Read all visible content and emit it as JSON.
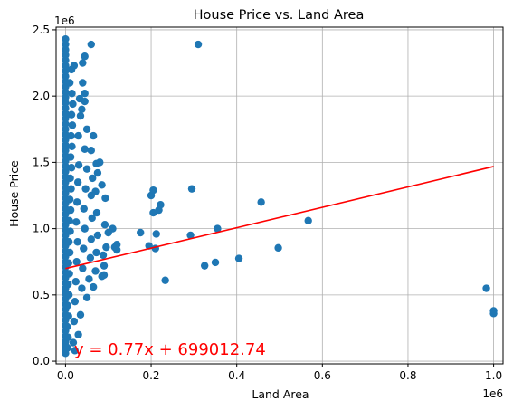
{
  "chart_data": {
    "type": "scatter",
    "title": "House Price vs. Land Area",
    "xlabel": "Land Area",
    "ylabel": "House Price",
    "x_offset_label": "1e6",
    "y_offset_label": "1e6",
    "xlim": [
      -22000,
      1022000
    ],
    "ylim": [
      -20000,
      2520000
    ],
    "xticks": [
      0,
      200000,
      400000,
      600000,
      800000,
      1000000
    ],
    "xtick_labels": [
      "0.0",
      "0.2",
      "0.4",
      "0.6",
      "0.8",
      "1.0"
    ],
    "yticks": [
      0,
      500000,
      1000000,
      1500000,
      2000000,
      2500000
    ],
    "ytick_labels": [
      "0.0",
      "0.5",
      "1.0",
      "1.5",
      "2.0",
      "2.5"
    ],
    "grid": true,
    "point_color": "#1f77b4",
    "line_color": "#ff0000",
    "regression": {
      "slope": 0.77,
      "intercept": 699012.74
    },
    "annotation": "y = 0.77x + 699012.74",
    "points": [
      [
        0,
        60000
      ],
      [
        0,
        90000
      ],
      [
        0,
        120000
      ],
      [
        0,
        150000
      ],
      [
        0,
        190000
      ],
      [
        0,
        230000
      ],
      [
        0,
        270000
      ],
      [
        0,
        310000
      ],
      [
        0,
        350000
      ],
      [
        0,
        390000
      ],
      [
        0,
        430000
      ],
      [
        0,
        470000
      ],
      [
        0,
        510000
      ],
      [
        0,
        550000
      ],
      [
        0,
        590000
      ],
      [
        0,
        630000
      ],
      [
        0,
        670000
      ],
      [
        0,
        710000
      ],
      [
        0,
        750000
      ],
      [
        0,
        790000
      ],
      [
        0,
        830000
      ],
      [
        0,
        870000
      ],
      [
        0,
        910000
      ],
      [
        0,
        950000
      ],
      [
        0,
        990000
      ],
      [
        0,
        1030000
      ],
      [
        0,
        1070000
      ],
      [
        0,
        1110000
      ],
      [
        0,
        1150000
      ],
      [
        0,
        1190000
      ],
      [
        0,
        1230000
      ],
      [
        0,
        1270000
      ],
      [
        0,
        1310000
      ],
      [
        0,
        1350000
      ],
      [
        0,
        1390000
      ],
      [
        0,
        1430000
      ],
      [
        0,
        1470000
      ],
      [
        0,
        1510000
      ],
      [
        0,
        1550000
      ],
      [
        0,
        1590000
      ],
      [
        0,
        1630000
      ],
      [
        0,
        1670000
      ],
      [
        0,
        1710000
      ],
      [
        0,
        1750000
      ],
      [
        0,
        1790000
      ],
      [
        0,
        1830000
      ],
      [
        0,
        1870000
      ],
      [
        0,
        1910000
      ],
      [
        0,
        1950000
      ],
      [
        0,
        1990000
      ],
      [
        0,
        2030000
      ],
      [
        0,
        2070000
      ],
      [
        0,
        2110000
      ],
      [
        0,
        2150000
      ],
      [
        0,
        2190000
      ],
      [
        0,
        2230000
      ],
      [
        0,
        2270000
      ],
      [
        0,
        2310000
      ],
      [
        0,
        2350000
      ],
      [
        0,
        2390000
      ],
      [
        0,
        2430000
      ],
      [
        5000,
        100000
      ],
      [
        6000,
        180000
      ],
      [
        4000,
        260000
      ],
      [
        7000,
        340000
      ],
      [
        5000,
        420000
      ],
      [
        8000,
        500000
      ],
      [
        6000,
        580000
      ],
      [
        9000,
        660000
      ],
      [
        7000,
        740000
      ],
      [
        10000,
        820000
      ],
      [
        8000,
        900000
      ],
      [
        11000,
        980000
      ],
      [
        9000,
        1060000
      ],
      [
        12000,
        1140000
      ],
      [
        10000,
        1220000
      ],
      [
        13000,
        1300000
      ],
      [
        11000,
        1380000
      ],
      [
        14000,
        1460000
      ],
      [
        12000,
        1540000
      ],
      [
        15000,
        1620000
      ],
      [
        13000,
        1700000
      ],
      [
        16000,
        1780000
      ],
      [
        14000,
        1860000
      ],
      [
        17000,
        1940000
      ],
      [
        15000,
        2020000
      ],
      [
        10000,
        2100000
      ],
      [
        14000,
        2200000
      ],
      [
        20000,
        2230000
      ],
      [
        18000,
        140000
      ],
      [
        20000,
        300000
      ],
      [
        22000,
        450000
      ],
      [
        24000,
        600000
      ],
      [
        26000,
        750000
      ],
      [
        28000,
        900000
      ],
      [
        25000,
        1050000
      ],
      [
        27000,
        1200000
      ],
      [
        29000,
        1350000
      ],
      [
        31000,
        1480000
      ],
      [
        30000,
        1700000
      ],
      [
        35000,
        1850000
      ],
      [
        33000,
        1980000
      ],
      [
        22000,
        80000
      ],
      [
        30000,
        200000
      ],
      [
        35000,
        350000
      ],
      [
        38000,
        550000
      ],
      [
        40000,
        700000
      ],
      [
        42000,
        850000
      ],
      [
        45000,
        1000000
      ],
      [
        43000,
        1150000
      ],
      [
        47000,
        1300000
      ],
      [
        50000,
        1450000
      ],
      [
        45000,
        1600000
      ],
      [
        50000,
        1750000
      ],
      [
        38000,
        1900000
      ],
      [
        40000,
        2100000
      ],
      [
        40000,
        2250000
      ],
      [
        45000,
        2300000
      ],
      [
        45000,
        1960000
      ],
      [
        45000,
        2020000
      ],
      [
        50000,
        480000
      ],
      [
        55000,
        620000
      ],
      [
        58000,
        780000
      ],
      [
        60000,
        920000
      ],
      [
        62000,
        1080000
      ],
      [
        60000,
        1250000
      ],
      [
        63000,
        1380000
      ],
      [
        60000,
        1590000
      ],
      [
        65000,
        1700000
      ],
      [
        65000,
        560000
      ],
      [
        70000,
        680000
      ],
      [
        72000,
        820000
      ],
      [
        75000,
        950000
      ],
      [
        73000,
        1120000
      ],
      [
        70000,
        1280000
      ],
      [
        75000,
        1420000
      ],
      [
        72000,
        1490000
      ],
      [
        80000,
        1500000
      ],
      [
        85000,
        640000
      ],
      [
        90000,
        720000
      ],
      [
        88000,
        800000
      ],
      [
        92000,
        1030000
      ],
      [
        95000,
        860000
      ],
      [
        93000,
        1230000
      ],
      [
        100000,
        970000
      ],
      [
        90000,
        650000
      ],
      [
        85000,
        1330000
      ],
      [
        110000,
        1000000
      ],
      [
        115000,
        860000
      ],
      [
        120000,
        880000
      ],
      [
        120000,
        840000
      ],
      [
        60000,
        2390000
      ],
      [
        310000,
        2390000
      ],
      [
        175000,
        970000
      ],
      [
        195000,
        870000
      ],
      [
        200000,
        1250000
      ],
      [
        205000,
        1290000
      ],
      [
        205000,
        1120000
      ],
      [
        210000,
        850000
      ],
      [
        212000,
        960000
      ],
      [
        218000,
        1140000
      ],
      [
        222000,
        1180000
      ],
      [
        233000,
        610000
      ],
      [
        292000,
        950000
      ],
      [
        295000,
        1300000
      ],
      [
        325000,
        720000
      ],
      [
        350000,
        745000
      ],
      [
        355000,
        1000000
      ],
      [
        405000,
        775000
      ],
      [
        457000,
        1200000
      ],
      [
        497000,
        855000
      ],
      [
        567000,
        1060000
      ],
      [
        983000,
        550000
      ],
      [
        1000000,
        360000
      ],
      [
        1000000,
        380000
      ]
    ]
  }
}
